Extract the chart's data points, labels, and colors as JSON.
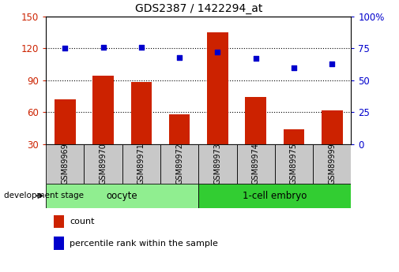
{
  "title": "GDS2387 / 1422294_at",
  "samples": [
    "GSM89969",
    "GSM89970",
    "GSM89971",
    "GSM89972",
    "GSM89973",
    "GSM89974",
    "GSM89975",
    "GSM89999"
  ],
  "counts": [
    72,
    94,
    88,
    58,
    135,
    74,
    44,
    62
  ],
  "percentiles": [
    75,
    76,
    76,
    68,
    72,
    67,
    60,
    63
  ],
  "bar_color": "#CC2200",
  "dot_color": "#0000CC",
  "left_ylim": [
    30,
    150
  ],
  "right_ylim": [
    0,
    100
  ],
  "left_yticks": [
    30,
    60,
    90,
    120,
    150
  ],
  "right_yticks": [
    0,
    25,
    50,
    75,
    100
  ],
  "right_yticklabels": [
    "0",
    "25",
    "50",
    "75",
    "100%"
  ],
  "groups": [
    {
      "label": "oocyte",
      "indices": [
        0,
        1,
        2,
        3
      ],
      "color": "#90EE90"
    },
    {
      "label": "1-cell embryo",
      "indices": [
        4,
        5,
        6,
        7
      ],
      "color": "#32CD32"
    }
  ],
  "grid_yticks": [
    60,
    90,
    120
  ],
  "xlabel_left": "development stage",
  "legend_count_label": "count",
  "legend_pct_label": "percentile rank within the sample",
  "tick_area_color": "#C8C8C8"
}
